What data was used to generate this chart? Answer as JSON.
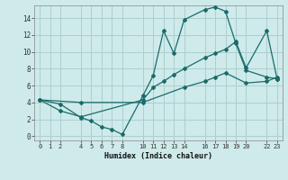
{
  "xlabel": "Humidex (Indice chaleur)",
  "bg_color": "#ceeaea",
  "grid_color": "#aecece",
  "line_color": "#1a6b6b",
  "xlim": [
    -0.5,
    23.5
  ],
  "ylim": [
    -0.5,
    15.5
  ],
  "xticks": [
    0,
    1,
    2,
    4,
    5,
    6,
    7,
    8,
    10,
    11,
    12,
    13,
    14,
    16,
    17,
    18,
    19,
    20,
    22,
    23
  ],
  "yticks": [
    0,
    2,
    4,
    6,
    8,
    10,
    12,
    14
  ],
  "line1_x": [
    0,
    2,
    4,
    5,
    6,
    7,
    8,
    10,
    11,
    12,
    13,
    14,
    16,
    17,
    18,
    19,
    20,
    22,
    23
  ],
  "line1_y": [
    4.3,
    3.8,
    2.2,
    1.8,
    1.1,
    0.8,
    0.2,
    4.8,
    7.2,
    12.5,
    9.8,
    13.8,
    15.0,
    15.3,
    14.8,
    11.0,
    7.8,
    7.0,
    6.8
  ],
  "line2_x": [
    0,
    2,
    4,
    10,
    11,
    12,
    13,
    14,
    16,
    17,
    18,
    19,
    20,
    22,
    23
  ],
  "line2_y": [
    4.3,
    3.0,
    2.3,
    4.3,
    5.8,
    6.5,
    7.3,
    8.0,
    9.3,
    9.8,
    10.3,
    11.2,
    8.1,
    12.5,
    6.8
  ],
  "line3_x": [
    0,
    4,
    10,
    14,
    16,
    17,
    18,
    20,
    22,
    23
  ],
  "line3_y": [
    4.3,
    4.0,
    4.0,
    5.8,
    6.5,
    7.0,
    7.5,
    6.3,
    6.5,
    7.0
  ]
}
